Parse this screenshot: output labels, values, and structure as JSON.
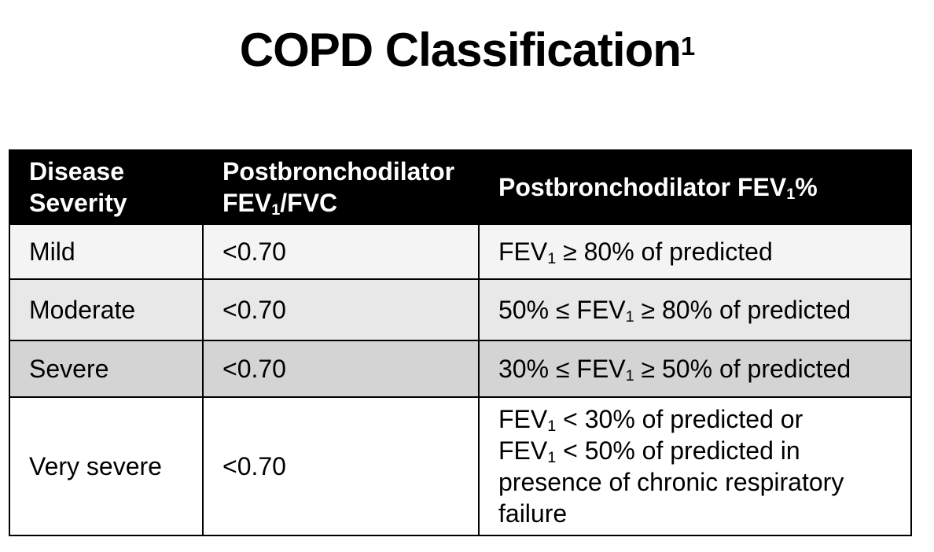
{
  "title": {
    "segments": [
      {
        "t": "text",
        "v": "COPD Classification"
      },
      {
        "t": "sup",
        "v": "1"
      }
    ],
    "plain": "COPD Classification1"
  },
  "table": {
    "header": {
      "disease_severity_segments": [
        {
          "t": "text",
          "v": "Disease"
        },
        {
          "t": "br"
        },
        {
          "t": "text",
          "v": "Severity"
        }
      ],
      "fev1_fvc_segments": [
        {
          "t": "text",
          "v": "Postbronchodilator"
        },
        {
          "t": "br"
        },
        {
          "t": "text",
          "v": "FEV"
        },
        {
          "t": "sub",
          "v": "1"
        },
        {
          "t": "text",
          "v": "/FVC"
        }
      ],
      "fev1_pct_segments": [
        {
          "t": "text",
          "v": "Postbronchodilator FEV"
        },
        {
          "t": "sub",
          "v": "1"
        },
        {
          "t": "text",
          "v": "%"
        }
      ]
    },
    "rows": [
      {
        "severity": "Mild",
        "fev1_fvc": "<0.70",
        "fev1_pct_segments": [
          {
            "t": "text",
            "v": "FEV"
          },
          {
            "t": "sub",
            "v": "1"
          },
          {
            "t": "text",
            "v": " ≥ 80% of predicted"
          }
        ],
        "fev1_pct_plain": "FEV1 ≥ 80% of predicted",
        "bg": "#f4f4f4"
      },
      {
        "severity": "Moderate",
        "fev1_fvc": "<0.70",
        "fev1_pct_segments": [
          {
            "t": "text",
            "v": "50% ≤ FEV"
          },
          {
            "t": "sub",
            "v": "1"
          },
          {
            "t": "text",
            "v": " ≥ 80% of predicted"
          }
        ],
        "fev1_pct_plain": "50% ≤ FEV1 ≥ 80% of predicted",
        "bg": "#e8e8e8"
      },
      {
        "severity": "Severe",
        "fev1_fvc": "<0.70",
        "fev1_pct_segments": [
          {
            "t": "text",
            "v": "30% ≤ FEV"
          },
          {
            "t": "sub",
            "v": "1"
          },
          {
            "t": "text",
            "v": " ≥ 50% of predicted"
          }
        ],
        "fev1_pct_plain": "30% ≤ FEV1 ≥ 50% of predicted",
        "bg": "#d4d4d4"
      },
      {
        "severity": "Very severe",
        "fev1_fvc": "<0.70",
        "fev1_pct_segments": [
          {
            "t": "text",
            "v": "FEV"
          },
          {
            "t": "sub",
            "v": "1"
          },
          {
            "t": "text",
            "v": " < 30% of predicted or"
          },
          {
            "t": "br"
          },
          {
            "t": "text",
            "v": "FEV"
          },
          {
            "t": "sub",
            "v": "1"
          },
          {
            "t": "text",
            "v": " < 50% of predicted in"
          },
          {
            "t": "br"
          },
          {
            "t": "text",
            "v": "presence of chronic respiratory"
          },
          {
            "t": "br"
          },
          {
            "t": "text",
            "v": "failure"
          }
        ],
        "fev1_pct_plain": "FEV1 < 30% of predicted or FEV1 < 50% of predicted in presence of chronic respiratory failure",
        "bg": "#ffffff"
      }
    ]
  },
  "colors": {
    "page_bg": "#ffffff",
    "header_bg": "#000000",
    "header_text": "#ffffff",
    "body_text": "#000000",
    "border": "#000000",
    "header_divider": "#d9d9d9",
    "row_backgrounds": [
      "#f4f4f4",
      "#e8e8e8",
      "#d4d4d4",
      "#ffffff"
    ]
  }
}
